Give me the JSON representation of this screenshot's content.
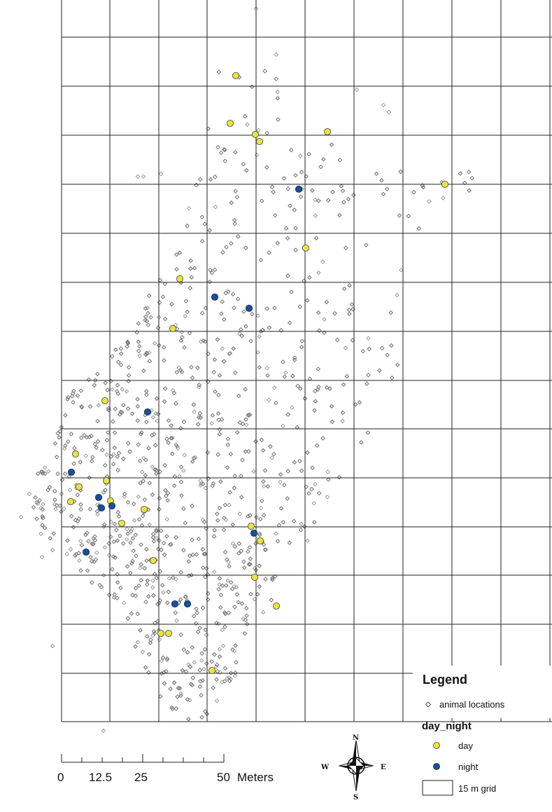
{
  "legend": {
    "title": "Legend",
    "animal_locations": "animal locations",
    "group_title": "day_night",
    "day": "day",
    "night": "night",
    "grid": "15 m grid"
  },
  "scale_bar": {
    "ticks": [
      "0",
      "12.5",
      "25",
      "50"
    ],
    "unit": "Meters"
  },
  "compass": {
    "n": "N",
    "s": "S",
    "e": "E",
    "w": "W"
  },
  "colors": {
    "day": "#e8e43a",
    "night": "#1d4e9a",
    "location_stroke": "#777777",
    "grid": "#222222"
  },
  "icons": {
    "animal_location": "diamond-marker",
    "day_point": "yellow-circle",
    "night_point": "blue-circle",
    "compass": "north-arrow-rose"
  },
  "day_points": [
    [
      337,
      108
    ],
    [
      329,
      176
    ],
    [
      365,
      192
    ],
    [
      371,
      202
    ],
    [
      468,
      188
    ],
    [
      636,
      263
    ],
    [
      437,
      354
    ],
    [
      257,
      398
    ],
    [
      247,
      469
    ],
    [
      150,
      572
    ],
    [
      108,
      648
    ],
    [
      113,
      695
    ],
    [
      152,
      686
    ],
    [
      101,
      716
    ],
    [
      158,
      715
    ],
    [
      206,
      727
    ],
    [
      174,
      747
    ],
    [
      359,
      751
    ],
    [
      372,
      772
    ],
    [
      219,
      800
    ],
    [
      364,
      824
    ],
    [
      395,
      865
    ],
    [
      230,
      904
    ],
    [
      241,
      904
    ],
    [
      303,
      957
    ]
  ],
  "night_points": [
    [
      427,
      270
    ],
    [
      307,
      424
    ],
    [
      356,
      440
    ],
    [
      211,
      588
    ],
    [
      102,
      674
    ],
    [
      141,
      710
    ],
    [
      160,
      722
    ],
    [
      145,
      725
    ],
    [
      363,
      761
    ],
    [
      123,
      788
    ],
    [
      250,
      862
    ],
    [
      268,
      862
    ]
  ]
}
